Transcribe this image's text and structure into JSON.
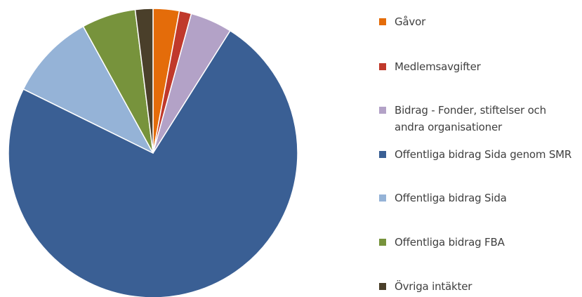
{
  "chart_data": {
    "type": "pie",
    "title": "",
    "legend_position": "right",
    "start_angle_deg": 0,
    "direction": "clockwise",
    "slices": [
      {
        "label": "Gåvor",
        "value": 2.8,
        "color": "#e46c0a"
      },
      {
        "label": "Medlemsavgifter",
        "value": 1.3,
        "color": "#c0392b"
      },
      {
        "label": "Bidrag - Fonder, stiftelser och andra organisationer",
        "value": 4.5,
        "color": "#b3a2c7"
      },
      {
        "label": "Offentliga bidrag Sida genom SMR",
        "value": 70.4,
        "color": "#3a5f94"
      },
      {
        "label": "Offentliga bidrag Sida",
        "value": 9.3,
        "color": "#95b3d7"
      },
      {
        "label": "Offentliga bidrag FBA",
        "value": 5.8,
        "color": "#77933c"
      },
      {
        "label": "Övriga intäkter",
        "value": 1.9,
        "color": "#4a3f2a"
      }
    ]
  }
}
